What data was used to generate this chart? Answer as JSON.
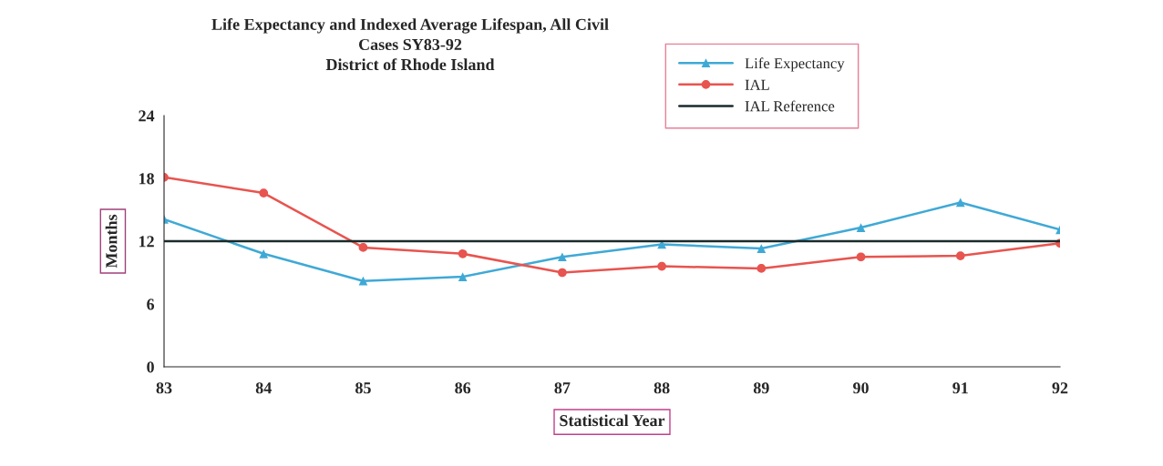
{
  "chart_data": {
    "type": "line",
    "title": "Life Expectancy and Indexed Average Lifespan, All Civil\nCases SY83-92\nDistrict of Rhode Island",
    "xlabel": "Statistical Year",
    "ylabel": "Months",
    "categories": [
      "83",
      "84",
      "85",
      "86",
      "87",
      "88",
      "89",
      "90",
      "91",
      "92"
    ],
    "series": [
      {
        "name": "Life Expectancy",
        "color": "#3fa9d6",
        "marker": "triangle",
        "values": [
          14.1,
          10.8,
          8.2,
          8.6,
          10.5,
          11.7,
          11.3,
          13.3,
          15.7,
          13.1
        ]
      },
      {
        "name": "IAL",
        "color": "#e8544f",
        "marker": "circle",
        "values": [
          18.1,
          16.6,
          11.4,
          10.8,
          9.0,
          9.6,
          9.4,
          10.5,
          10.6,
          11.8
        ]
      },
      {
        "name": "IAL Reference",
        "color": "#1a2a2a",
        "marker": "none",
        "values": [
          12,
          12,
          12,
          12,
          12,
          12,
          12,
          12,
          12,
          12
        ]
      }
    ],
    "ylim": [
      0,
      24
    ],
    "yticks": [
      0,
      6,
      12,
      18,
      24
    ],
    "grid": false,
    "legend": "top right"
  }
}
